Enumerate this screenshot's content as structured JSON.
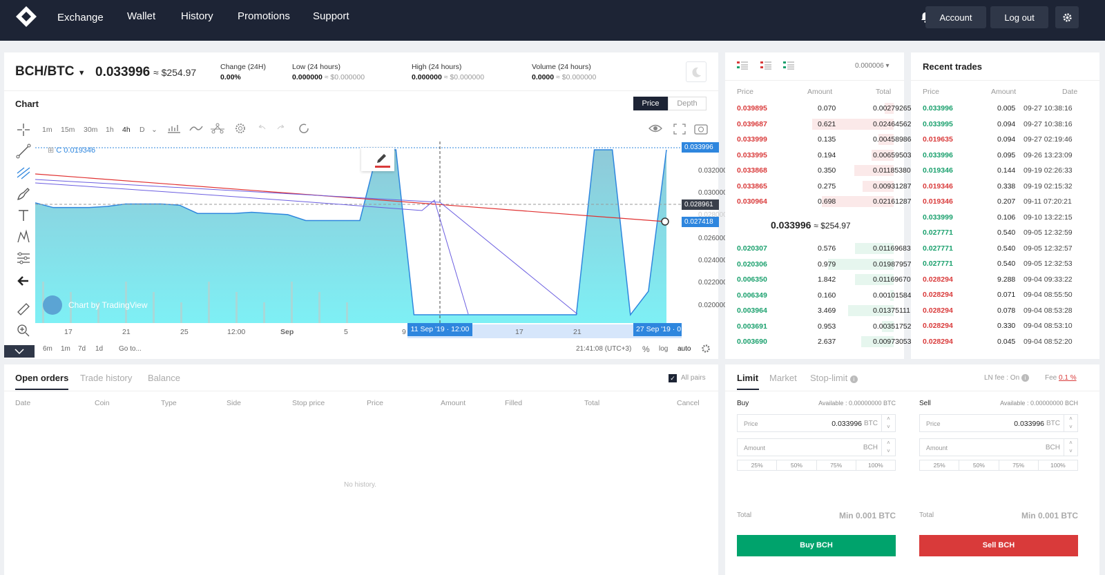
{
  "nav": {
    "links": [
      "Exchange",
      "Wallet",
      "History",
      "Promotions",
      "Support"
    ],
    "account": "Account",
    "logout": "Log out"
  },
  "ticker": {
    "pair": "BCH/BTC",
    "price": "0.033996",
    "usd": "≈ $254.97",
    "change_label": "Change (24H)",
    "change_val": "0.00%",
    "low_label": "Low (24 hours)",
    "low_val": "0.000000",
    "low_usd": "≈ $0.000000",
    "high_label": "High (24 hours)",
    "high_val": "0.000000",
    "high_usd": "≈ $0.000000",
    "vol_label": "Volume (24 hours)",
    "vol_val": "0.0000",
    "vol_usd": "≈ $0.000000"
  },
  "chart": {
    "title": "Chart",
    "price_tab": "Price",
    "depth_tab": "Depth",
    "timeframes": [
      "1m",
      "15m",
      "30m",
      "1h",
      "4h",
      "D"
    ],
    "legend": "C 0.019346",
    "watermark": "Chart by TradingView",
    "y_ticks": [
      "0.032000",
      "0.030000",
      "0.026000",
      "0.024000",
      "0.022000",
      "0.020000"
    ],
    "y_last": "0.033996",
    "y_cross": "0.028961",
    "y_line": "0.027418",
    "y_faded": "0.028000",
    "x_ticks": [
      "17",
      "21",
      "25",
      "12:00",
      "Sep",
      "5",
      "9",
      "17",
      "21"
    ],
    "x_cross": "11 Sep '19 · 12:00",
    "x_end": "27 Sep '19 · 0",
    "ranges": [
      "6m",
      "1m",
      "7d",
      "1d"
    ],
    "goto": "Go to...",
    "time": "21:41:08 (UTC+3)",
    "pct": "%",
    "log": "log",
    "auto": "auto"
  },
  "chart_data": {
    "type": "line",
    "title": "",
    "xlabel": "",
    "ylabel": "",
    "series": [
      {
        "values": [
          0.0295,
          0.0291,
          0.0291,
          0.0291,
          0.0292,
          0.0294,
          0.0294,
          0.0294,
          0.0293,
          0.0286,
          0.0286,
          0.0286,
          0.0287,
          0.0286,
          0.0285,
          0.028,
          0.028,
          0.028,
          0.028,
          0.034,
          0.034,
          0.02,
          0.02,
          0.02,
          0.02,
          0.02,
          0.02,
          0.02,
          0.02,
          0.02,
          0.02,
          0.034,
          0.034,
          0.02,
          0.022,
          0.034
        ]
      }
    ],
    "ylim": [
      0.0193,
      0.034
    ]
  },
  "orderbook": {
    "precision": "0.000006",
    "headers": [
      "Price",
      "Amount",
      "Total"
    ],
    "asks": [
      [
        "0.039895",
        "0.070",
        "0.00279265"
      ],
      [
        "0.039687",
        "0.621",
        "0.02464562"
      ],
      [
        "0.033999",
        "0.135",
        "0.00458986"
      ],
      [
        "0.033995",
        "0.194",
        "0.00659503"
      ],
      [
        "0.033868",
        "0.350",
        "0.01185380"
      ],
      [
        "0.033865",
        "0.275",
        "0.00931287"
      ],
      [
        "0.030964",
        "0.698",
        "0.02161287"
      ]
    ],
    "mid": "0.033996",
    "mid_usd": "≈ $254.97",
    "bids": [
      [
        "0.020307",
        "0.576",
        "0.01169683"
      ],
      [
        "0.020306",
        "0.979",
        "0.01987957"
      ],
      [
        "0.006350",
        "1.842",
        "0.01169670"
      ],
      [
        "0.006349",
        "0.160",
        "0.00101584"
      ],
      [
        "0.003964",
        "3.469",
        "0.01375111"
      ],
      [
        "0.003691",
        "0.953",
        "0.00351752"
      ],
      [
        "0.003690",
        "2.637",
        "0.00973053"
      ]
    ]
  },
  "trades": {
    "title": "Recent trades",
    "headers": [
      "Price",
      "Amount",
      "Date"
    ],
    "rows": [
      [
        "0.033996",
        "0.005",
        "09-27 10:38:16",
        "b"
      ],
      [
        "0.033995",
        "0.094",
        "09-27 10:38:16",
        "b"
      ],
      [
        "0.019635",
        "0.094",
        "09-27 02:19:46",
        "s"
      ],
      [
        "0.033996",
        "0.095",
        "09-26 13:23:09",
        "b"
      ],
      [
        "0.019346",
        "0.144",
        "09-19 02:26:33",
        "b"
      ],
      [
        "0.019346",
        "0.338",
        "09-19 02:15:32",
        "s"
      ],
      [
        "0.019346",
        "0.207",
        "09-11 07:20:21",
        "s"
      ],
      [
        "0.033999",
        "0.106",
        "09-10 13:22:15",
        "b"
      ],
      [
        "0.027771",
        "0.540",
        "09-05 12:32:59",
        "b"
      ],
      [
        "0.027771",
        "0.540",
        "09-05 12:32:57",
        "b"
      ],
      [
        "0.027771",
        "0.540",
        "09-05 12:32:53",
        "b"
      ],
      [
        "0.028294",
        "9.288",
        "09-04 09:33:22",
        "s"
      ],
      [
        "0.028294",
        "0.071",
        "09-04 08:55:50",
        "s"
      ],
      [
        "0.028294",
        "0.078",
        "09-04 08:53:28",
        "s"
      ],
      [
        "0.028294",
        "0.330",
        "09-04 08:53:10",
        "s"
      ],
      [
        "0.028294",
        "0.045",
        "09-04 08:52:20",
        "s"
      ]
    ]
  },
  "orders": {
    "tabs": [
      "Open orders",
      "Trade history",
      "Balance"
    ],
    "all_pairs": "All pairs",
    "headers": [
      "Date",
      "Coin",
      "Type",
      "Side",
      "Stop price",
      "Price",
      "Amount",
      "Filled",
      "Total",
      "Cancel"
    ],
    "empty": "No history."
  },
  "form": {
    "tabs": [
      "Limit",
      "Market",
      "Stop-limit"
    ],
    "ln_fee": "LN fee : On",
    "fee_label": "Fee",
    "fee_val": "0.1 %",
    "buy": {
      "title": "Buy",
      "available": "Available : 0.00000000 BTC",
      "price_ph": "Price",
      "price_val": "0.033996",
      "price_unit": "BTC",
      "amount_ph": "Amount",
      "amount_unit": "BCH",
      "total": "Total",
      "min": "Min 0.001 BTC",
      "btn": "Buy BCH"
    },
    "sell": {
      "title": "Sell",
      "available": "Available : 0.00000000 BCH",
      "price_ph": "Price",
      "price_val": "0.033996",
      "price_unit": "BTC",
      "amount_ph": "Amount",
      "amount_unit": "BCH",
      "total": "Total",
      "min": "Min 0.001 BTC",
      "btn": "Sell BCH"
    },
    "pcts": [
      "25%",
      "50%",
      "75%",
      "100%"
    ]
  },
  "colors": {
    "nav": "#1d2435",
    "buy": "#1aa06d",
    "sell": "#d93a3a",
    "area": "#7fe0f0",
    "line": "#2e86de"
  }
}
